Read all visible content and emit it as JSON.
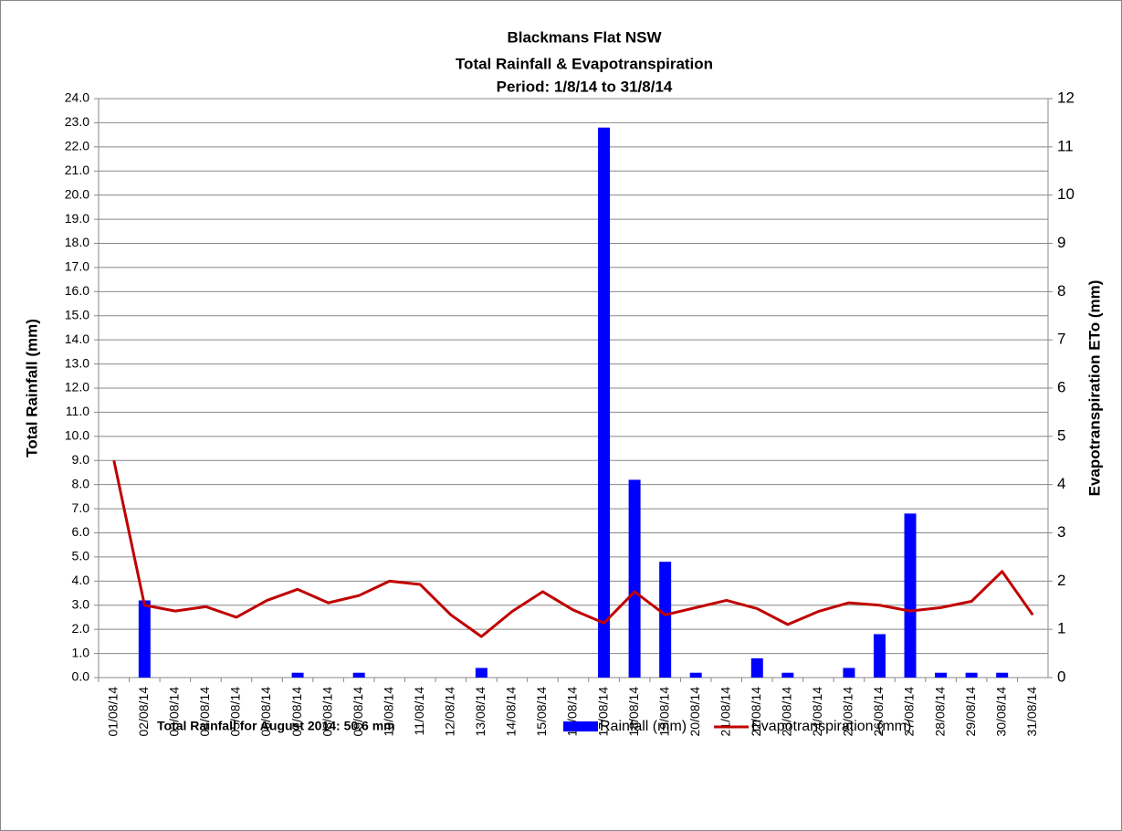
{
  "chart_data": {
    "type": "bar",
    "title": "Blackmans Flat NSW",
    "subtitle": [
      "Total Rainfall & Evapotranspiration",
      "Period: 1/8/14 to 31/8/14"
    ],
    "ylabel": "Total Rainfall (mm)",
    "y2label": "Evapotranspiration ETo (mm)",
    "annotation": "Total Rainfall for August 2014: 50.6 mm",
    "categories": [
      "01/08/14",
      "02/08/14",
      "03/08/14",
      "04/08/14",
      "05/08/14",
      "06/08/14",
      "07/08/14",
      "08/08/14",
      "09/08/14",
      "10/08/14",
      "11/08/14",
      "12/08/14",
      "13/08/14",
      "14/08/14",
      "15/08/14",
      "16/08/14",
      "17/08/14",
      "18/08/14",
      "19/08/14",
      "20/08/14",
      "21/08/14",
      "22/08/14",
      "23/08/14",
      "24/08/14",
      "25/08/14",
      "26/08/14",
      "27/08/14",
      "28/08/14",
      "29/08/14",
      "30/08/14",
      "31/08/14"
    ],
    "series": [
      {
        "name": "Rainfall (mm)",
        "type": "bar",
        "color": "#0000ff",
        "axis": "y",
        "values": [
          0,
          3.2,
          0,
          0,
          0,
          0,
          0.2,
          0,
          0.2,
          0,
          0,
          0,
          0.4,
          0,
          0,
          0,
          22.8,
          8.2,
          4.8,
          0.2,
          0,
          0.8,
          0.2,
          0,
          0.4,
          1.8,
          6.8,
          0.2,
          0.2,
          0.2,
          0
        ]
      },
      {
        "name": "Evapotranspiration (mm)",
        "type": "line",
        "color": "#c00000",
        "axis": "y2",
        "values": [
          4.5,
          1.5,
          1.38,
          1.47,
          1.25,
          1.6,
          1.83,
          1.55,
          1.7,
          2.0,
          1.93,
          1.3,
          0.85,
          1.37,
          1.78,
          1.4,
          1.13,
          1.78,
          1.3,
          1.45,
          1.6,
          1.43,
          1.1,
          1.37,
          1.55,
          1.5,
          1.38,
          1.45,
          1.58,
          2.2,
          1.3
        ]
      }
    ],
    "ylim": [
      0,
      24
    ],
    "yticks": [
      {
        "value": 0,
        "label": "0.0"
      },
      {
        "value": 1,
        "label": "1.0"
      },
      {
        "value": 2,
        "label": "2.0"
      },
      {
        "value": 3,
        "label": "3.0"
      },
      {
        "value": 4,
        "label": "4.0"
      },
      {
        "value": 5,
        "label": "5.0"
      },
      {
        "value": 6,
        "label": "6.0"
      },
      {
        "value": 7,
        "label": "7.0"
      },
      {
        "value": 8,
        "label": "8.0"
      },
      {
        "value": 9,
        "label": "9.0"
      },
      {
        "value": 10,
        "label": "10.0"
      },
      {
        "value": 11,
        "label": "11.0"
      },
      {
        "value": 12,
        "label": "12.0"
      },
      {
        "value": 13,
        "label": "13.0"
      },
      {
        "value": 14,
        "label": "14.0"
      },
      {
        "value": 15,
        "label": "15.0"
      },
      {
        "value": 16,
        "label": "16.0"
      },
      {
        "value": 17,
        "label": "17.0"
      },
      {
        "value": 18,
        "label": "18.0"
      },
      {
        "value": 19,
        "label": "19.0"
      },
      {
        "value": 20,
        "label": "20.0"
      },
      {
        "value": 21,
        "label": "21.0"
      },
      {
        "value": 22,
        "label": "22.0"
      },
      {
        "value": 23,
        "label": "23.0"
      },
      {
        "value": 24,
        "label": "24.0"
      }
    ],
    "y2lim": [
      0,
      12
    ],
    "y2ticks": [
      0,
      1,
      2,
      3,
      4,
      5,
      6,
      7,
      8,
      9,
      10,
      11,
      12
    ],
    "grid": true
  }
}
